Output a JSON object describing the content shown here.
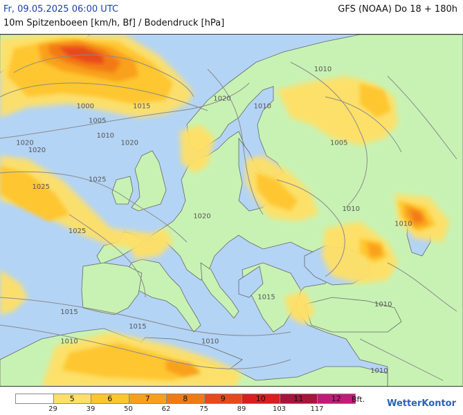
{
  "header": {
    "date": "Fr, 09.05.2025 06:00 UTC",
    "model": "GFS (NOAA) Do 18 + 180h",
    "subtitle": "10m Spitzenboeen [km/h, Bf] / Bodendruck [hPa]"
  },
  "isobars": [
    {
      "label": "1000",
      "lon": -21,
      "lat": 62
    },
    {
      "label": "1005",
      "lon": -18,
      "lat": 60
    },
    {
      "label": "1010",
      "lon": -16,
      "lat": 58
    },
    {
      "label": "1015",
      "lon": -7,
      "lat": 62
    },
    {
      "label": "1020",
      "lon": -36,
      "lat": 57
    },
    {
      "label": "1020",
      "lon": -33,
      "lat": 56
    },
    {
      "label": "1020",
      "lon": -10,
      "lat": 57
    },
    {
      "label": "1025",
      "lon": -32,
      "lat": 51
    },
    {
      "label": "1025",
      "lon": -18,
      "lat": 52
    },
    {
      "label": "1025",
      "lon": -23,
      "lat": 45
    },
    {
      "label": "1020",
      "lon": 8,
      "lat": 47
    },
    {
      "label": "1020",
      "lon": 13,
      "lat": 63
    },
    {
      "label": "1010",
      "lon": 38,
      "lat": 67
    },
    {
      "label": "1010",
      "lon": 23,
      "lat": 62
    },
    {
      "label": "1005",
      "lon": 42,
      "lat": 57
    },
    {
      "label": "1010",
      "lon": 45,
      "lat": 48
    },
    {
      "label": "1010",
      "lon": 58,
      "lat": 46
    },
    {
      "label": "1015",
      "lon": 24,
      "lat": 36
    },
    {
      "label": "1015",
      "lon": -25,
      "lat": 34
    },
    {
      "label": "1015",
      "lon": -8,
      "lat": 32
    },
    {
      "label": "1010",
      "lon": -25,
      "lat": 30
    },
    {
      "label": "1010",
      "lon": 10,
      "lat": 30
    },
    {
      "label": "1010",
      "lon": 53,
      "lat": 35
    },
    {
      "label": "1010",
      "lon": 52,
      "lat": 26
    }
  ],
  "legend": {
    "cells": [
      {
        "bft": "",
        "color": "#ffffff"
      },
      {
        "bft": "5",
        "color": "#ffe066"
      },
      {
        "bft": "6",
        "color": "#ffc52e"
      },
      {
        "bft": "7",
        "color": "#f9a01a"
      },
      {
        "bft": "8",
        "color": "#f27a12"
      },
      {
        "bft": "9",
        "color": "#e9481a"
      },
      {
        "bft": "10",
        "color": "#d81e1e"
      },
      {
        "bft": "11",
        "color": "#a8143c"
      },
      {
        "bft": "12",
        "color": "#c21a7a"
      }
    ],
    "values": [
      "29",
      "39",
      "50",
      "62",
      "75",
      "89",
      "103",
      "117"
    ],
    "unit": "Bft."
  },
  "brand": "WetterKontor"
}
